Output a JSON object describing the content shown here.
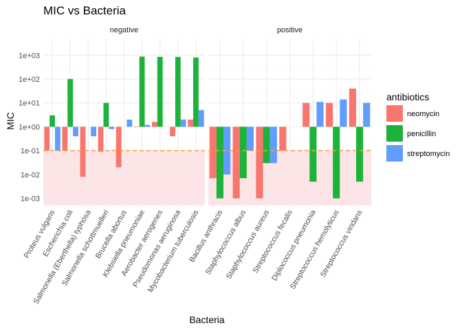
{
  "chart_data": {
    "type": "bar",
    "title": "MIC vs Bacteria",
    "xlabel": "Bacteria",
    "ylabel": "MIC",
    "y_scale": "log10",
    "bars_from": 1,
    "ylim": [
      0.0005,
      5000
    ],
    "y_ticks": [
      {
        "value": 0.001,
        "label": "1e-03"
      },
      {
        "value": 0.01,
        "label": "1e-02"
      },
      {
        "value": 0.1,
        "label": "1e-01"
      },
      {
        "value": 1,
        "label": "1e+00"
      },
      {
        "value": 10,
        "label": "1e+01"
      },
      {
        "value": 100,
        "label": "1e+02"
      },
      {
        "value": 1000,
        "label": "1e+03"
      }
    ],
    "threshold": {
      "value": 0.1,
      "color": "#F2A23A",
      "style": "dashed"
    },
    "shaded_below_threshold": {
      "color": "#FFE4E6"
    },
    "grid": true,
    "legend": {
      "title": "antibiotics",
      "placement": "right"
    },
    "series": [
      {
        "name": "neomycin",
        "color": "#F8766D"
      },
      {
        "name": "penicillin",
        "color": "#1DB33A"
      },
      {
        "name": "streptomycin",
        "color": "#619CFF"
      }
    ],
    "facets": [
      {
        "label": "negative",
        "categories": [
          "Proteus vulgaris",
          "Escherichia coli",
          "Salmonella (Eberthella) typhosa",
          "Salmonella schottmuelleri",
          "Brucella abortus",
          "Klebsiella pneumoniae",
          "Aerobacter aerogenes",
          "Pseudomonas aeruginosa",
          "Mycobacterium tuberculosis"
        ],
        "values": {
          "neomycin": [
            0.1,
            0.1,
            0.008,
            0.09,
            0.02,
            1,
            1.6,
            0.4,
            2
          ],
          "penicillin": [
            3,
            100,
            null,
            10,
            null,
            870,
            850,
            850,
            800
          ],
          "streptomycin": [
            0.1,
            0.4,
            0.4,
            0.8,
            2,
            1.2,
            null,
            2,
            5
          ]
        }
      },
      {
        "label": "positive",
        "categories": [
          "Bacillus anthracis",
          "Staphylococcus albus",
          "Staphylococcus aureus",
          "Streptococcus fecalis",
          "Diplococcus pneumonia",
          "Streptococcus hemolyticus",
          "Streptococcus viridans"
        ],
        "values": {
          "neomycin": [
            0.007,
            0.001,
            0.001,
            0.1,
            10,
            10,
            40
          ],
          "penicillin": [
            0.001,
            0.007,
            0.03,
            null,
            0.005,
            0.001,
            0.005
          ],
          "streptomycin": [
            0.01,
            0.1,
            0.03,
            null,
            11,
            14,
            10
          ]
        }
      }
    ]
  }
}
